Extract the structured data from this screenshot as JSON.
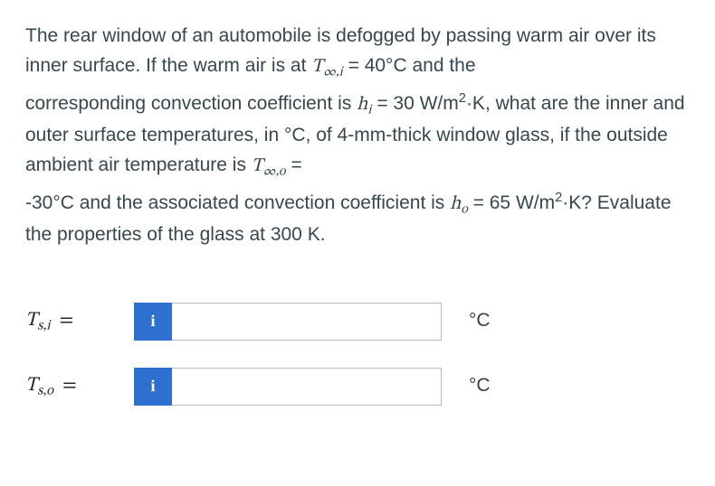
{
  "problem": {
    "p1_a": "The rear window of an automobile is defogged by passing warm air over its inner surface. If the warm air is at ",
    "p1_sym": "T",
    "p1_sub": "∞,i",
    "p1_b": " = 40°C and the",
    "p2_a": "corresponding convection coefficient is ",
    "p2_sym": "h",
    "p2_sub": "i",
    "p2_b": " = 30 W/m",
    "p2_sup": "2",
    "p2_c": "·K, what are the inner and outer surface temperatures, in °C, of 4-mm-thick window glass, if the outside ambient air temperature is ",
    "p2_sym2": "T",
    "p2_sub2": "∞,o",
    "p2_d": " =",
    "p3_a": "-30°C and the associated convection coefficient is ",
    "p3_sym": "h",
    "p3_sub": "o",
    "p3_b": " = 65 W/m",
    "p3_sup": "2",
    "p3_c": "·K? Evaluate the properties of the glass at 300 K."
  },
  "answers": {
    "row1": {
      "sym": "T",
      "sub": "s,i",
      "eq": "=",
      "info": "i",
      "value": "",
      "unit": "°C"
    },
    "row2": {
      "sym": "T",
      "sub": "s,o",
      "eq": "=",
      "info": "i",
      "value": "",
      "unit": "°C"
    }
  },
  "colors": {
    "text": "#37474f",
    "badge_bg": "#2f6fd0",
    "badge_fg": "#ffffff",
    "input_border": "#b6bcbf",
    "background": "#ffffff"
  }
}
